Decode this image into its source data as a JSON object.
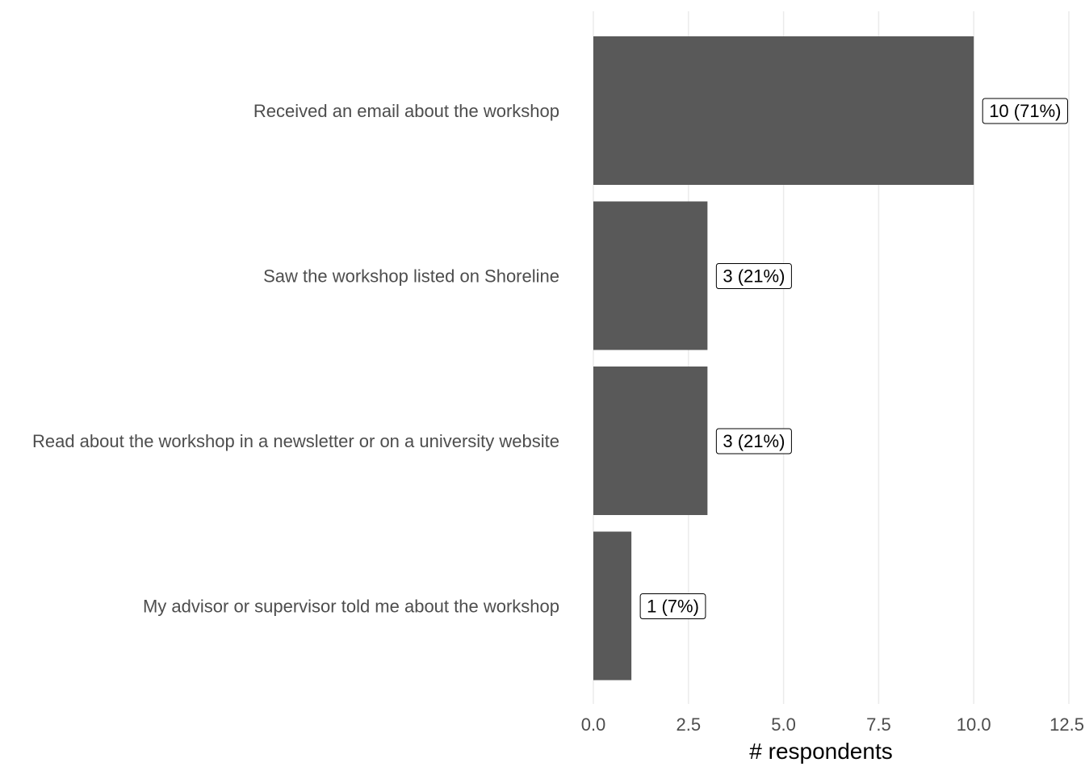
{
  "chart_data": {
    "type": "bar",
    "orientation": "horizontal",
    "categories": [
      "Received an email about the workshop",
      "Saw the workshop listed on Shoreline",
      "Read about the workshop in a newsletter or on a university website",
      "My advisor or supervisor told me about the workshop"
    ],
    "values": [
      10,
      3,
      3,
      1
    ],
    "data_labels": [
      "10 (71%)",
      "3 (21%)",
      "3 (21%)",
      "1 (7%)"
    ],
    "title": "",
    "xlabel": "# respondents",
    "ylabel": "",
    "xlim": [
      0,
      12.5
    ],
    "x_ticks": [
      0,
      2.5,
      5,
      7.5,
      10,
      12.5
    ],
    "x_tick_labels": [
      "0.0",
      "2.5",
      "5.0",
      "7.5",
      "10.0",
      "12.5"
    ],
    "grid": true,
    "legend": "none",
    "colors": {
      "bar": "#595959",
      "grid": "#ebebeb",
      "label_text": "#4d4d4d"
    }
  }
}
